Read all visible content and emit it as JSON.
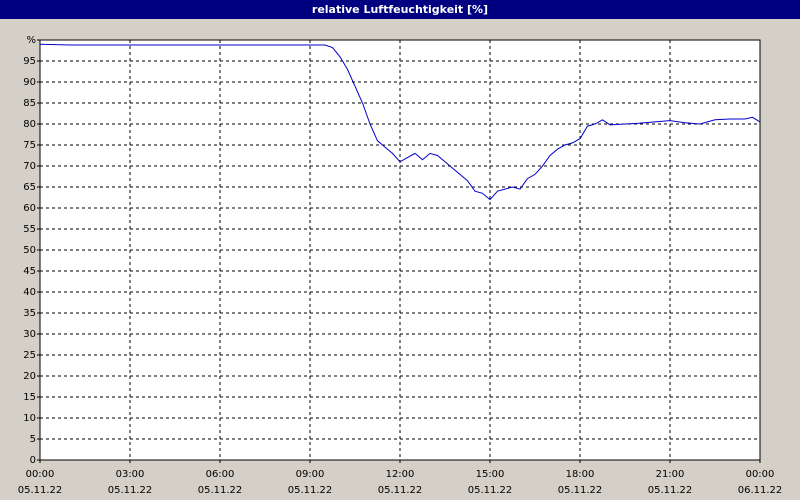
{
  "chart_data": {
    "type": "line",
    "title": "relative Luftfeuchtigkeit [%]",
    "x": [
      0,
      1,
      2,
      3,
      4,
      5,
      6,
      7,
      8,
      9,
      9.5,
      9.75,
      10,
      10.25,
      10.5,
      10.75,
      11,
      11.25,
      11.5,
      11.75,
      12,
      12.25,
      12.5,
      12.75,
      13,
      13.25,
      13.5,
      13.75,
      14,
      14.25,
      14.5,
      14.75,
      15,
      15.25,
      15.5,
      15.75,
      16,
      16.25,
      16.5,
      16.75,
      17,
      17.25,
      17.5,
      17.75,
      18,
      18.25,
      18.5,
      18.75,
      19,
      19.5,
      20,
      20.5,
      21,
      21.5,
      22,
      22.5,
      23,
      23.5,
      23.75,
      24
    ],
    "series": [
      {
        "name": "relative Luftfeuchtigkeit",
        "color": "#0000cc",
        "values": [
          99,
          98.8,
          98.8,
          98.8,
          98.8,
          98.8,
          98.8,
          98.8,
          98.8,
          98.8,
          98.8,
          98.2,
          96,
          93,
          89,
          85,
          80,
          76,
          74.5,
          73,
          71,
          72,
          73,
          71.5,
          73,
          72.5,
          71,
          69.5,
          68,
          66.5,
          64,
          63.5,
          62,
          64,
          64.5,
          65,
          64.5,
          67,
          68,
          70,
          72.5,
          74,
          75,
          75.5,
          76.5,
          79.5,
          80,
          81,
          79.8,
          80,
          80.2,
          80.5,
          80.8,
          80.3,
          80,
          81,
          81.2,
          81.2,
          81.6,
          80.5
        ]
      }
    ],
    "xlim": [
      0,
      24
    ],
    "xticks": [
      {
        "value": 0,
        "label": "00:00"
      },
      {
        "value": 3,
        "label": "03:00"
      },
      {
        "value": 6,
        "label": "06:00"
      },
      {
        "value": 9,
        "label": "09:00"
      },
      {
        "value": 12,
        "label": "12:00"
      },
      {
        "value": 15,
        "label": "15:00"
      },
      {
        "value": 18,
        "label": "18:00"
      },
      {
        "value": 21,
        "label": "21:00"
      },
      {
        "value": 24,
        "label": "00:00"
      }
    ],
    "xtick_dates": [
      "05.11.22",
      "05.11.22",
      "05.11.22",
      "05.11.22",
      "05.11.22",
      "05.11.22",
      "05.11.22",
      "05.11.22",
      "06.11.22"
    ],
    "ylim": [
      0,
      100
    ],
    "yticks": [
      0,
      5,
      10,
      15,
      20,
      25,
      30,
      35,
      40,
      45,
      50,
      55,
      60,
      65,
      70,
      75,
      80,
      85,
      90,
      95,
      {
        "value": 100,
        "label": "%"
      }
    ],
    "grid": true
  }
}
